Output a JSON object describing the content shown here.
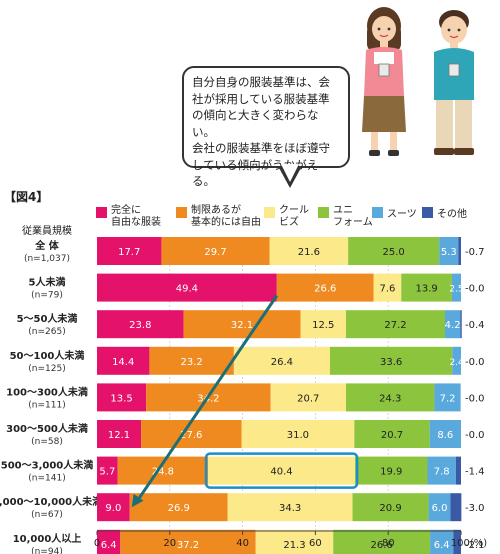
{
  "figure_label": "【図4】",
  "callout_text": "自分自身の服装基準は、会\n社が採用している服装基準\nの傾向と大きく変わらない。\n会社の服装基準をほぼ遵守\nしている傾向がうかがえる。",
  "colors": {
    "完全に自由な服装": "#e4126b",
    "制限あるが基本的には自由": "#ef8a21",
    "クールビズ": "#fbe98a",
    "ユニフォーム": "#8cc43e",
    "スーツ": "#5aa9dc",
    "その他": "#3b5aa6",
    "highlight": "#1a8fc9",
    "arrow": "#1b6f75"
  },
  "chart_data": {
    "type": "bar",
    "orientation": "horizontal",
    "stacked": true,
    "xlim": [
      0,
      100
    ],
    "x_ticks": [
      "0",
      "20",
      "40",
      "60",
      "80",
      "100(%)"
    ],
    "category_header": "従業員規模",
    "categories": [
      {
        "name": "全 体",
        "n": "(n=1,037)"
      },
      {
        "name": "5人未満",
        "n": "(n=79)"
      },
      {
        "name": "5～50人未満",
        "n": "(n=265)"
      },
      {
        "name": "50～100人未満",
        "n": "(n=125)"
      },
      {
        "name": "100～300人未満",
        "n": "(n=111)"
      },
      {
        "name": "300～500人未満",
        "n": "(n=58)"
      },
      {
        "name": "500～3,000人未満",
        "n": "(n=141)"
      },
      {
        "name": "3,000～10,000人未満",
        "n": "(n=67)"
      },
      {
        "name": "10,000人以上",
        "n": "(n=94)"
      }
    ],
    "series": [
      {
        "name": "完全に自由な服装",
        "legend_label": [
          "完全に",
          "自由な服装"
        ],
        "values": [
          17.7,
          49.4,
          23.8,
          14.4,
          13.5,
          12.1,
          5.7,
          9.0,
          6.4
        ]
      },
      {
        "name": "制限あるが基本的には自由",
        "legend_label": [
          "制限あるが",
          "基本的には自由"
        ],
        "values": [
          29.7,
          26.6,
          32.1,
          23.2,
          34.2,
          27.6,
          24.8,
          26.9,
          37.2
        ]
      },
      {
        "name": "クールビズ",
        "legend_label": [
          "クール",
          "ビズ"
        ],
        "values": [
          21.6,
          7.6,
          12.5,
          26.4,
          20.7,
          31.0,
          40.4,
          34.3,
          21.3
        ]
      },
      {
        "name": "ユニフォーム",
        "legend_label": [
          "ユニ",
          "フォーム"
        ],
        "values": [
          25.0,
          13.9,
          27.2,
          33.6,
          24.3,
          20.7,
          19.9,
          20.9,
          26.6
        ]
      },
      {
        "name": "スーツ",
        "legend_label": [
          "スーツ"
        ],
        "values": [
          5.3,
          2.5,
          4.2,
          2.4,
          7.2,
          8.6,
          7.8,
          6.0,
          6.4
        ]
      },
      {
        "name": "その他",
        "legend_label": [
          "その他"
        ],
        "values": [
          0.7,
          0.0,
          0.4,
          0.0,
          0.0,
          0.0,
          1.4,
          3.0,
          2.1
        ]
      }
    ],
    "highlight": {
      "category_index": 6,
      "series_index": 2
    },
    "arrow": {
      "from": {
        "category_index": 1,
        "x": 49.4
      },
      "to": {
        "category_index": 7,
        "x": 9.0
      }
    }
  }
}
